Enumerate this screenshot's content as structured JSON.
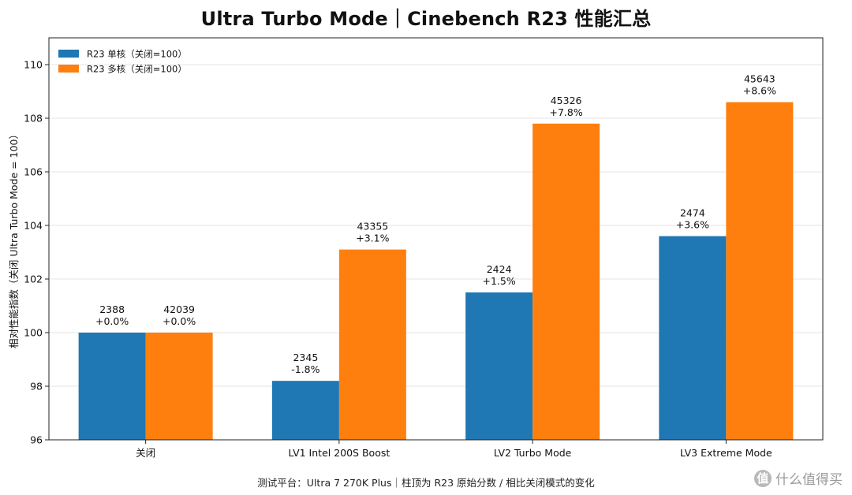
{
  "chart_data": {
    "type": "bar",
    "title": "Ultra Turbo Mode｜Cinebench R23 性能汇总",
    "xlabel": "",
    "ylabel": "相对性能指数（关闭 Ultra Turbo Mode = 100）",
    "categories": [
      "关闭",
      "LV1 Intel 200S Boost",
      "LV2 Turbo Mode",
      "LV3 Extreme Mode"
    ],
    "ylim": [
      96,
      111
    ],
    "yticks": [
      96,
      98,
      100,
      102,
      104,
      106,
      108,
      110
    ],
    "grid": "y",
    "legend_position": "top-left",
    "series": [
      {
        "name": "R23 单核（关闭=100）",
        "color": "#1f77b4",
        "values": [
          100.0,
          98.2,
          101.5,
          103.6
        ],
        "raw": [
          "2388",
          "2345",
          "2424",
          "2474"
        ],
        "change": [
          "+0.0%",
          "-1.8%",
          "+1.5%",
          "+3.6%"
        ]
      },
      {
        "name": "R23 多核（关闭=100）",
        "color": "#ff7f0e",
        "values": [
          100.0,
          103.1,
          107.8,
          108.6
        ],
        "raw": [
          "42039",
          "43355",
          "45326",
          "45643"
        ],
        "change": [
          "+0.0%",
          "+3.1%",
          "+7.8%",
          "+8.6%"
        ]
      }
    ]
  },
  "footnote": "测试平台：Ultra 7 270K Plus｜柱顶为 R23 原始分数 / 相比关闭模式的变化",
  "watermark": {
    "badge": "值",
    "text": "什么值得买"
  }
}
